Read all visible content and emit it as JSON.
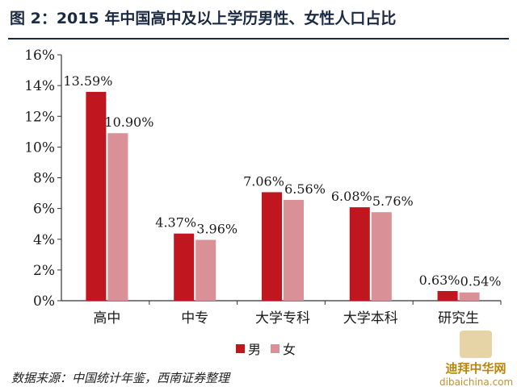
{
  "title": "图 2：2015 年中国高中及以上学历男性、女性人口占比",
  "source": "数据来源：中国统计年鉴，西南证券整理",
  "watermark": {
    "line1": "迪拜中华网",
    "line2": "dibaichina.com"
  },
  "colors": {
    "male": "#c0161f",
    "female": "#d99096",
    "axis": "#333333",
    "title": "#1b2a44"
  },
  "chart_data": {
    "type": "bar",
    "title": "图 2：2015 年中国高中及以上学历男性、女性人口占比",
    "categories": [
      "高中",
      "中专",
      "大学专科",
      "大学本科",
      "研究生"
    ],
    "series": [
      {
        "name": "男",
        "values": [
          13.59,
          4.37,
          7.06,
          6.08,
          0.63
        ],
        "labels": [
          "13.59%",
          "4.37%",
          "7.06%",
          "6.08%",
          "0.63%"
        ]
      },
      {
        "name": "女",
        "values": [
          10.9,
          3.96,
          6.56,
          5.76,
          0.54
        ],
        "labels": [
          "10.90%",
          "3.96%",
          "6.56%",
          "5.76%",
          "0.54%"
        ]
      }
    ],
    "ylim": [
      0,
      16
    ],
    "yticks": [
      0,
      2,
      4,
      6,
      8,
      10,
      12,
      14,
      16
    ],
    "ytick_labels": [
      "0%",
      "2%",
      "4%",
      "6%",
      "8%",
      "10%",
      "12%",
      "14%",
      "16%"
    ],
    "xlabel": "",
    "ylabel": "",
    "grid": false,
    "legend": "bottom"
  }
}
